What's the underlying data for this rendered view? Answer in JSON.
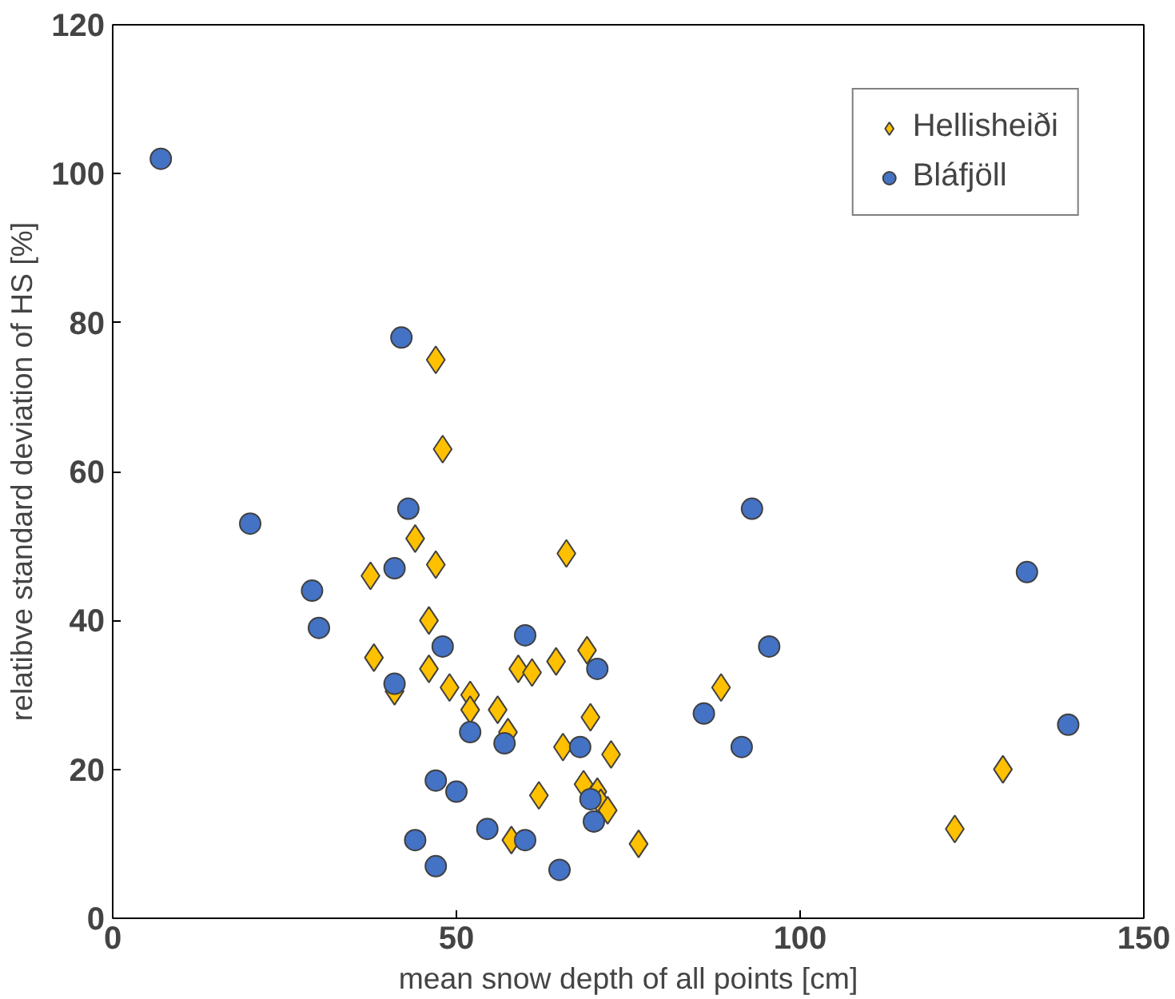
{
  "chart_data": {
    "type": "scatter",
    "xlabel": "mean snow depth of all points [cm]",
    "ylabel": "relatibve standard deviation of HS [%]",
    "xlim": [
      0,
      150
    ],
    "xticks": [
      0,
      50,
      100,
      150
    ],
    "ylim": [
      0,
      120
    ],
    "yticks": [
      0,
      20,
      40,
      60,
      80,
      100,
      120
    ],
    "grid": false,
    "legend": "top right",
    "series": [
      {
        "name": "Hellisheiði",
        "color": "#ffc000",
        "marker": "diamond",
        "x": [
          37.5,
          38,
          41,
          44,
          46,
          46,
          47,
          47,
          48,
          49,
          52,
          52,
          56,
          57.5,
          58,
          59,
          61,
          62,
          64.5,
          65.5,
          66,
          68.5,
          69,
          69.5,
          70.5,
          71,
          72,
          72.5,
          76.5,
          88.5,
          122.5,
          129.5
        ],
        "values": [
          46,
          35,
          30.5,
          51,
          40,
          33.5,
          75,
          47.5,
          63,
          31,
          30,
          28,
          28,
          25,
          10.5,
          33.5,
          33,
          16.5,
          34.5,
          23,
          49,
          18,
          36,
          27,
          17,
          15.5,
          14.5,
          22,
          10,
          31,
          12,
          20
        ]
      },
      {
        "name": "Bláfjöll",
        "color": "#4472c4",
        "marker": "circle",
        "x": [
          7,
          20,
          29,
          30,
          42,
          43,
          41,
          41,
          44,
          47,
          48,
          47,
          50,
          52,
          54.5,
          57,
          60,
          60,
          65,
          68,
          69.5,
          70,
          70.5,
          86,
          91.5,
          93,
          95.5,
          133,
          139
        ],
        "values": [
          102,
          53,
          44,
          39,
          78,
          55,
          47,
          31.5,
          10.5,
          18.5,
          36.5,
          7,
          17,
          25,
          12,
          23.5,
          38,
          10.5,
          6.5,
          23,
          16,
          13,
          33.5,
          27.5,
          23,
          55,
          36.5,
          46.5,
          26
        ]
      }
    ]
  }
}
